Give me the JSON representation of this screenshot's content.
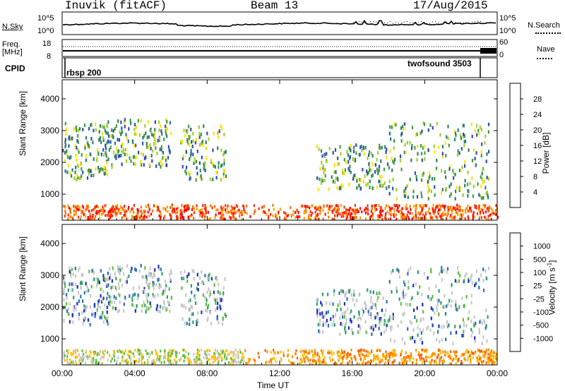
{
  "header": {
    "station": "Inuvik (fitACF)",
    "beam": "Beam 13",
    "date": "17/Aug/2015"
  },
  "left_labels": {
    "nsky": "N.Sky",
    "nsky_ticks": [
      "10^5",
      "10^0"
    ],
    "freq": "Freq.",
    "freq_unit": "[MHz]",
    "freq_ticks": [
      "18",
      "8"
    ],
    "cpid": "CPID"
  },
  "right_labels": {
    "nsearch": "N.Search",
    "nsearch_ticks": [
      "10^5",
      "10^0"
    ],
    "nave": "Nave",
    "nave_ticks": [
      "60",
      "0"
    ]
  },
  "cpid_labels": {
    "left": "rbsp 200",
    "right": "twofsound 3503"
  },
  "colors": {
    "power_scale": [
      "#1f1fff",
      "#2f4fb0",
      "#2f7f6f",
      "#3f9f3f",
      "#9fcf2f",
      "#ffdf00",
      "#ff9f00",
      "#ff6f00",
      "#ff2f00",
      "#ff0000"
    ],
    "velocity_scale": [
      "#1f2fbf",
      "#2f6fbf",
      "#2f9f6f",
      "#5fbf3f",
      "#c8c8c8",
      "#ffbf00",
      "#ff8f00",
      "#ff5f00",
      "#ff0000"
    ]
  },
  "chart_data": [
    {
      "type": "heatmap",
      "name": "power",
      "xlabel": "",
      "ylabel": "Slant Range [km]",
      "x_ticks": [
        "00:00",
        "04:00",
        "08:00",
        "12:00",
        "16:00",
        "20:00",
        "00:00"
      ],
      "y_ticks": [
        1000,
        2000,
        3000,
        4000
      ],
      "ylim": [
        180,
        4600
      ],
      "colorbar": {
        "label": "Power [dB]",
        "ticks": [
          "4",
          "8",
          "12",
          "16",
          "20",
          "24",
          "28"
        ]
      }
    },
    {
      "type": "heatmap",
      "name": "velocity",
      "xlabel": "Time UT",
      "ylabel": "Slant Range [km]",
      "x_ticks": [
        "00:00",
        "04:00",
        "08:00",
        "12:00",
        "16:00",
        "20:00",
        "00:00"
      ],
      "y_ticks": [
        1000,
        2000,
        3000,
        4000
      ],
      "ylim": [
        180,
        4600
      ],
      "colorbar": {
        "label": "Velocity [m s^-1]",
        "ticks": [
          "1000",
          "500",
          "100",
          "25",
          "-25",
          "-100",
          "-500",
          "-1000"
        ]
      }
    }
  ]
}
